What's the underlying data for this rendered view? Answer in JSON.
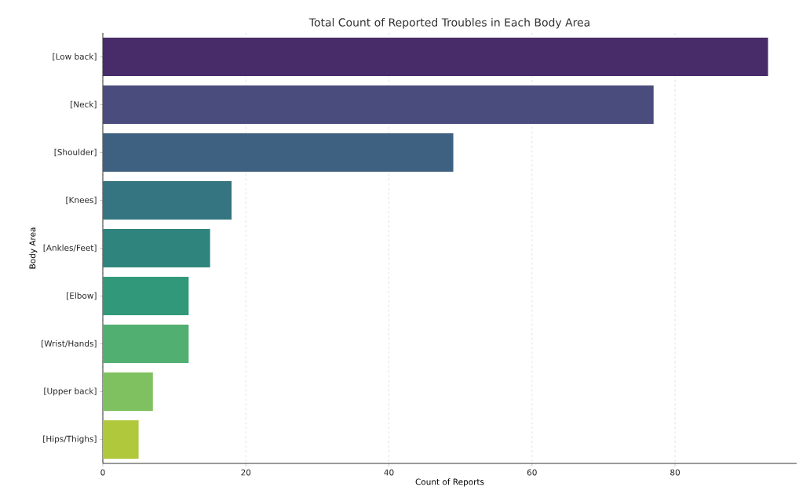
{
  "chart_data": {
    "type": "bar",
    "orientation": "horizontal",
    "title": "Total Count of Reported Troubles in Each Body Area",
    "xlabel": "Count of Reports",
    "ylabel": "Body Area",
    "categories": [
      "[Low back]",
      "[Neck]",
      "[Shoulder]",
      "[Knees]",
      "[Ankles/Feet]",
      "[Elbow]",
      "[Wrist/Hands]",
      "[Upper back]",
      "[Hips/Thighs]"
    ],
    "values": [
      93,
      77,
      49,
      18,
      15,
      12,
      12,
      7,
      5
    ],
    "colors": [
      "#472c69",
      "#4a4c7d",
      "#3f6181",
      "#357481",
      "#2f857d",
      "#31997a",
      "#51b071",
      "#7fc160",
      "#b0c83c"
    ],
    "xlim": [
      0,
      97
    ],
    "xticks": [
      0,
      20,
      40,
      60,
      80
    ],
    "grid": "x"
  }
}
